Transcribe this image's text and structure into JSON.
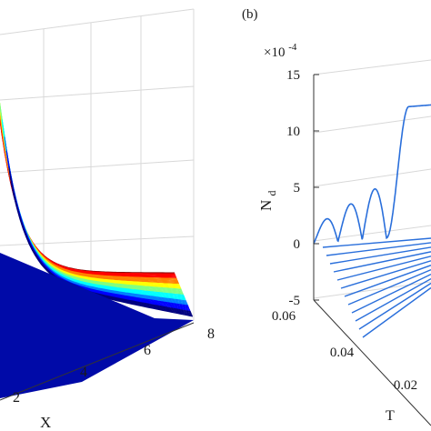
{
  "chart_data": [
    {
      "type": "surface",
      "panel": "left",
      "xlabel": "X",
      "x_ticks": [
        "2",
        "4",
        "6",
        "8"
      ],
      "colormap": [
        "#00007f",
        "#0000ff",
        "#0080ff",
        "#00ffff",
        "#80ff80",
        "#ffff00",
        "#ff8000",
        "#ff0000",
        "#800000"
      ],
      "peak_surface": "sharp peak at low X decaying rapidly toward a flat floor by X = 8",
      "grid": true
    },
    {
      "type": "line",
      "panel": "right",
      "panel_label": "(b)",
      "ylabel_main": "N",
      "ylabel_sub": "d",
      "scale_main": "×10",
      "scale_exp": "-4",
      "y_ticks": [
        "15",
        "10",
        "5",
        "0",
        "-5"
      ],
      "ylim": [
        -5,
        15
      ],
      "tlabel": "T",
      "t_ticks": [
        "0.06",
        "0.04",
        "0.02"
      ],
      "series_color": "#2a6fdb",
      "front_trace": {
        "description": "oscillating trace at largest T",
        "x": [
          0,
          1,
          2,
          3,
          4,
          5,
          6
        ],
        "y": [
          0,
          1.5,
          0,
          3,
          0,
          4.5,
          11.5
        ]
      },
      "grid": true
    }
  ]
}
